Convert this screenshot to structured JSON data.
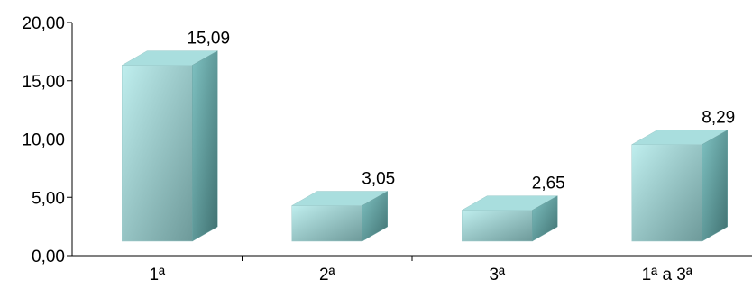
{
  "chart_data": {
    "type": "bar",
    "categories": [
      "1ª",
      "2ª",
      "3ª",
      "1ª a 3ª"
    ],
    "values": [
      15.09,
      3.05,
      2.65,
      8.29
    ],
    "value_labels": [
      "15,09",
      "3,05",
      "2,65",
      "8,29"
    ],
    "y_ticks": [
      "0,00",
      "5,00",
      "10,00",
      "15,00",
      "20,00"
    ],
    "ylim": [
      0,
      20
    ],
    "grid": false,
    "legend": "none",
    "title": "",
    "xlabel": "",
    "ylabel": "",
    "colors": {
      "front_light": "#bfeeee",
      "front_dark": "#6e9a9a",
      "top": "#a9dede",
      "side_light": "#7fc2c2",
      "side_dark": "#3f7070",
      "axis": "#000000"
    }
  }
}
